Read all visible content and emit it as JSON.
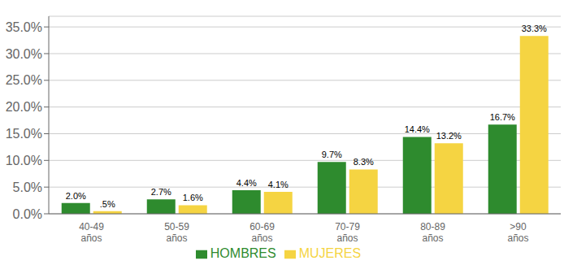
{
  "chart_data": {
    "type": "bar",
    "categories": [
      "40-49\naños",
      "50-59\naños",
      "60-69\naños",
      "70-79\naños",
      "80-89\naños",
      ">90\naños"
    ],
    "series": [
      {
        "name": "HOMBRES",
        "color": "#2e8b2e",
        "values": [
          2.0,
          2.7,
          4.4,
          9.7,
          14.4,
          16.7
        ],
        "value_labels": [
          "2.0%",
          "2.7%",
          "4.4%",
          "9.7%",
          "14.4%",
          "16.7%"
        ]
      },
      {
        "name": "MUJERES",
        "color": "#f5d442",
        "values": [
          0.5,
          1.6,
          4.1,
          8.3,
          13.2,
          33.3
        ],
        "value_labels": [
          ".5%",
          "1.6%",
          "4.1%",
          "8.3%",
          "13.2%",
          "33.3%"
        ]
      }
    ],
    "ylim": [
      0,
      37
    ],
    "yticks": [
      {
        "value": 0.0,
        "label": "0.0%"
      },
      {
        "value": 5.0,
        "label": "5.0%"
      },
      {
        "value": 10.0,
        "label": "10.0%"
      },
      {
        "value": 15.0,
        "label": "15.0%"
      },
      {
        "value": 20.0,
        "label": "20.0%"
      },
      {
        "value": 25.0,
        "label": "25.0%"
      },
      {
        "value": 30.0,
        "label": "30.0%"
      },
      {
        "value": 35.0,
        "label": "35.0%"
      }
    ],
    "grid": true,
    "legend": "bottom",
    "data_labels": true
  }
}
